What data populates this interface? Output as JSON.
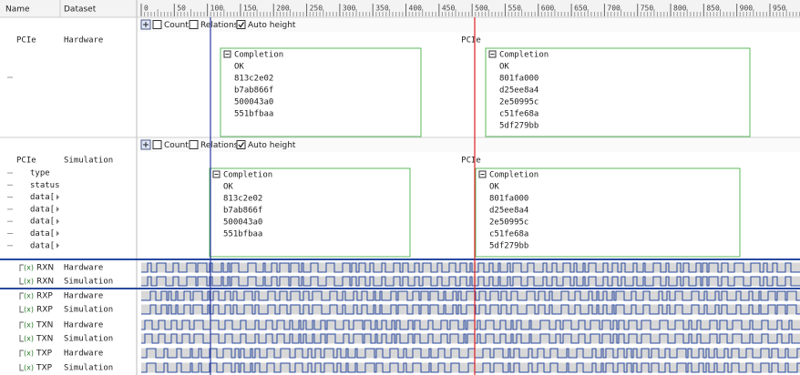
{
  "header": {
    "name": "Name",
    "dataset": "Dataset"
  },
  "ruler": {
    "ticks": [
      0,
      50,
      100,
      150,
      200,
      250,
      300,
      350,
      400,
      450,
      500,
      550,
      600,
      650,
      700,
      750,
      800,
      850,
      900,
      950
    ]
  },
  "toolbar": {
    "count": "Count",
    "relations": "Relations",
    "auto_height": "Auto height"
  },
  "transaction_rows": [
    {
      "name": "PCIe",
      "dataset": "Hardware",
      "bus": "PCIe",
      "fields": [],
      "transactions": [
        {
          "title": "Completion",
          "lines": [
            "OK",
            "813c2e02",
            "b7ab866f",
            "500043a0",
            "551bfbaa"
          ]
        },
        {
          "title": "Completion",
          "lines": [
            "OK",
            "801fa000",
            "d25ee8a4",
            "2e50995c",
            "c51fe68a",
            "5df279bb"
          ]
        }
      ]
    },
    {
      "name": "PCIe",
      "dataset": "Simulation",
      "bus": "PCIe",
      "fields": [
        "type",
        "status",
        "data[",
        "data[",
        "data[",
        "data[",
        "data["
      ],
      "transactions": [
        {
          "title": "Completion",
          "lines": [
            "OK",
            "813c2e02",
            "b7ab866f",
            "500043a0",
            "551bfbaa"
          ]
        },
        {
          "title": "Completion",
          "lines": [
            "OK",
            "801fa000",
            "d25ee8a4",
            "2e50995c",
            "c51fe68a",
            "5df279bb"
          ]
        }
      ]
    }
  ],
  "signal_icon": "(x)",
  "signals": [
    {
      "name": "RXN",
      "dataset": "Hardware"
    },
    {
      "name": "RXN",
      "dataset": "Simulation"
    },
    {
      "name": "RXP",
      "dataset": "Hardware"
    },
    {
      "name": "RXP",
      "dataset": "Simulation"
    },
    {
      "name": "TXN",
      "dataset": "Hardware"
    },
    {
      "name": "TXN",
      "dataset": "Simulation"
    },
    {
      "name": "TXP",
      "dataset": "Hardware"
    },
    {
      "name": "TXP",
      "dataset": "Simulation"
    }
  ]
}
